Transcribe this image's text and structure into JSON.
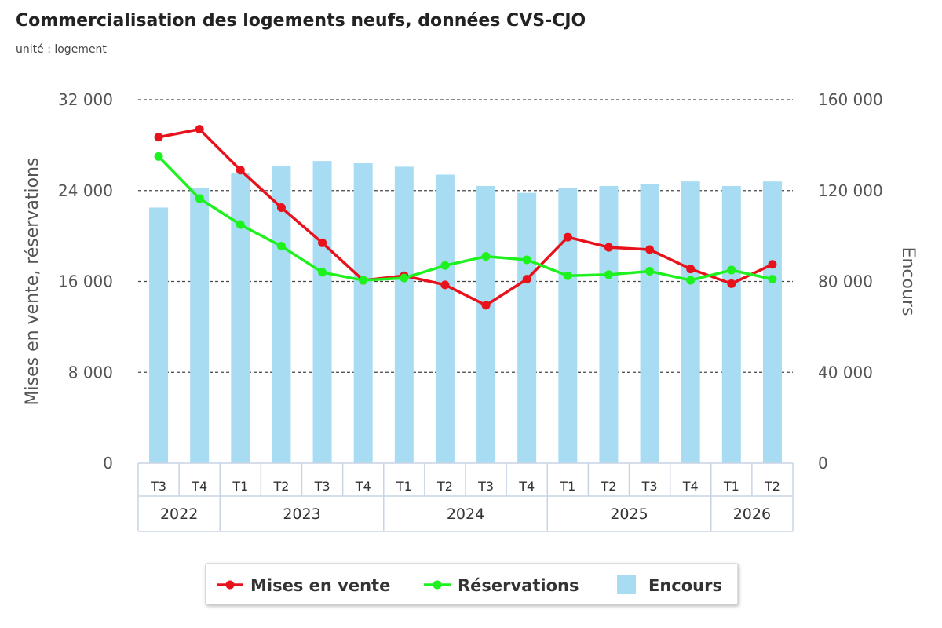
{
  "title": "Commercialisation des logements neufs, données CVS-CJO",
  "subtitle": "unité : logement",
  "chart_data": {
    "type": "bar+line",
    "categories": [
      "T3",
      "T4",
      "T1",
      "T2",
      "T3",
      "T4",
      "T1",
      "T2",
      "T3",
      "T4",
      "T1",
      "T2",
      "T3",
      "T4",
      "T1",
      "T2"
    ],
    "year_groups": [
      {
        "label": "2022",
        "count": 2
      },
      {
        "label": "2023",
        "count": 4
      },
      {
        "label": "2024",
        "count": 4
      },
      {
        "label": "2025",
        "count": 4
      },
      {
        "label": "2026",
        "count": 2
      }
    ],
    "left_axis": {
      "label": "Mises en vente, réservations",
      "ylim": [
        0,
        32000
      ],
      "ticks": [
        "0",
        "8 000",
        "16 000",
        "24 000",
        "32 000"
      ]
    },
    "right_axis": {
      "label": "Encours",
      "ylim": [
        0,
        160000
      ],
      "ticks": [
        "0",
        "40 000",
        "80 000",
        "120 000",
        "160 000"
      ]
    },
    "series": [
      {
        "name": "Mises en vente",
        "type": "line",
        "axis": "left",
        "color": "#e8121c",
        "values": [
          28700,
          29400,
          25800,
          22500,
          19400,
          16100,
          16500,
          15700,
          13900,
          16200,
          19900,
          19000,
          18800,
          17100,
          15800,
          17500
        ]
      },
      {
        "name": "Réservations",
        "type": "line",
        "axis": "left",
        "color": "#1ef21e",
        "values": [
          27000,
          23300,
          21000,
          19100,
          16800,
          16100,
          16300,
          17400,
          18200,
          17900,
          16500,
          16600,
          16900,
          16100,
          17000,
          16200
        ]
      },
      {
        "name": "Encours",
        "type": "bar",
        "axis": "right",
        "color": "#a8dcf2",
        "values": [
          112500,
          121000,
          127500,
          131000,
          133000,
          132000,
          130500,
          127000,
          122000,
          119000,
          121000,
          122000,
          123000,
          124000,
          122000,
          124000
        ]
      }
    ],
    "grid": true,
    "legend_position": "bottom"
  }
}
